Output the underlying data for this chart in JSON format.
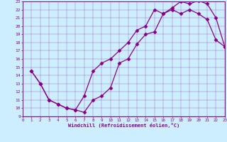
{
  "xlabel": "Windchill (Refroidissement éolien,°C)",
  "xlim": [
    0,
    23
  ],
  "ylim": [
    9,
    23
  ],
  "xticks": [
    0,
    1,
    2,
    3,
    4,
    5,
    6,
    7,
    8,
    9,
    10,
    11,
    12,
    13,
    14,
    15,
    16,
    17,
    18,
    19,
    20,
    21,
    22,
    23
  ],
  "yticks": [
    9,
    10,
    11,
    12,
    13,
    14,
    15,
    16,
    17,
    18,
    19,
    20,
    21,
    22,
    23
  ],
  "bg_color": "#cceeff",
  "line_color": "#880088",
  "line1_x": [
    1,
    2,
    3,
    4,
    5,
    6,
    7,
    8,
    9,
    10,
    11,
    12,
    13,
    14,
    15,
    16,
    17,
    18,
    19,
    20,
    21,
    22,
    23
  ],
  "line1_y": [
    14.5,
    13,
    11,
    10.5,
    10.0,
    9.8,
    9.5,
    11.0,
    11.5,
    12.5,
    15.5,
    16.0,
    17.8,
    19.0,
    19.3,
    21.5,
    22.2,
    23.0,
    22.7,
    23.1,
    22.7,
    21.0,
    17.5
  ],
  "line2_x": [
    1,
    2,
    3,
    4,
    5,
    6,
    7,
    8,
    9,
    10,
    11,
    12,
    13,
    14,
    15,
    16,
    17,
    18,
    19,
    20,
    21,
    22,
    23
  ],
  "line2_y": [
    14.5,
    13,
    11,
    10.5,
    10.0,
    9.8,
    11.5,
    14.5,
    15.5,
    16.0,
    17.0,
    18.0,
    19.5,
    20.0,
    22.0,
    21.5,
    22.0,
    21.5,
    22.0,
    21.5,
    20.8,
    18.3,
    17.5
  ],
  "marker": "D",
  "markersize": 2.5,
  "linewidth": 0.9
}
